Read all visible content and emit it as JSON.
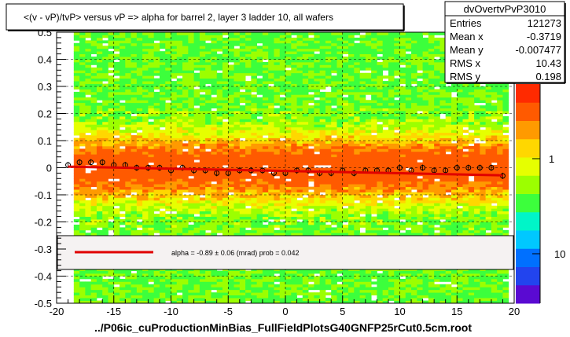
{
  "chart_data": {
    "type": "heatmap",
    "title": "<(v - vP)/tvP> versus   vP => alpha for barrel 2, layer 3 ladder 10, all wafers",
    "xlabel": "../P06ic_cuProductionMinBias_FullFieldPlotsG40GNFP25rCut0.5cm.root",
    "ylabel": "",
    "xlim": [
      -20,
      20
    ],
    "ylim": [
      -0.5,
      0.5
    ],
    "x_ticks": [
      "-20",
      "-15",
      "-10",
      "-5",
      "0",
      "5",
      "10",
      "15",
      "20"
    ],
    "y_ticks": [
      "-0.5",
      "-0.4",
      "-0.3",
      "-0.2",
      "-0.1",
      "0",
      "0.1",
      "0.2",
      "0.3",
      "0.4",
      "0.5"
    ],
    "grid": true,
    "colorbar": {
      "scale": "log",
      "tick_labels": [
        "1",
        "10"
      ],
      "colors": [
        "#5a0ad2",
        "#2244ee",
        "#0070ff",
        "#00c8ff",
        "#00f5c8",
        "#3cff3c",
        "#9cff00",
        "#e6ff00",
        "#ffd700",
        "#ff9a00",
        "#ff5a00",
        "#ff2a00"
      ]
    },
    "stats_box": {
      "name": "dvOvertvPvP3010",
      "rows": [
        {
          "label": "Entries",
          "value": "121273"
        },
        {
          "label": "Mean x",
          "value": "-0.3719"
        },
        {
          "label": "Mean y",
          "value": "-0.007477"
        },
        {
          "label": "RMS x",
          "value": "10.43"
        },
        {
          "label": "RMS y",
          "value": "0.198"
        }
      ]
    },
    "fit": {
      "text": "alpha =   -0.89 ±  0.06 (mrad) prob = 0.042",
      "color": "#e00000",
      "line": {
        "x": [
          -19.0,
          19.0
        ],
        "y": [
          0.004,
          -0.028
        ]
      }
    },
    "profile_points": {
      "x": [
        -19.0,
        -18.0,
        -17.0,
        -16.0,
        -15.0,
        -14.0,
        -13.0,
        -12.0,
        -11.0,
        -10.0,
        -9.0,
        -8.0,
        -7.0,
        -6.0,
        -5.0,
        -4.0,
        -3.0,
        -2.0,
        -1.0,
        0.0,
        1.0,
        2.0,
        3.0,
        4.0,
        5.0,
        6.0,
        7.0,
        8.0,
        9.0,
        10.0,
        11.0,
        12.0,
        13.0,
        14.0,
        15.0,
        16.0,
        17.0,
        18.0,
        19.0
      ],
      "y": [
        0.01,
        0.02,
        0.02,
        0.02,
        0.01,
        0.01,
        0.0,
        0.0,
        0.0,
        -0.01,
        0.0,
        -0.01,
        -0.01,
        -0.02,
        -0.02,
        -0.01,
        -0.01,
        -0.01,
        -0.02,
        -0.02,
        -0.01,
        -0.01,
        -0.02,
        -0.02,
        -0.01,
        -0.02,
        -0.01,
        -0.01,
        -0.01,
        0.0,
        -0.01,
        0.0,
        -0.01,
        -0.01,
        0.0,
        0.0,
        0.0,
        0.0,
        -0.03
      ]
    }
  }
}
